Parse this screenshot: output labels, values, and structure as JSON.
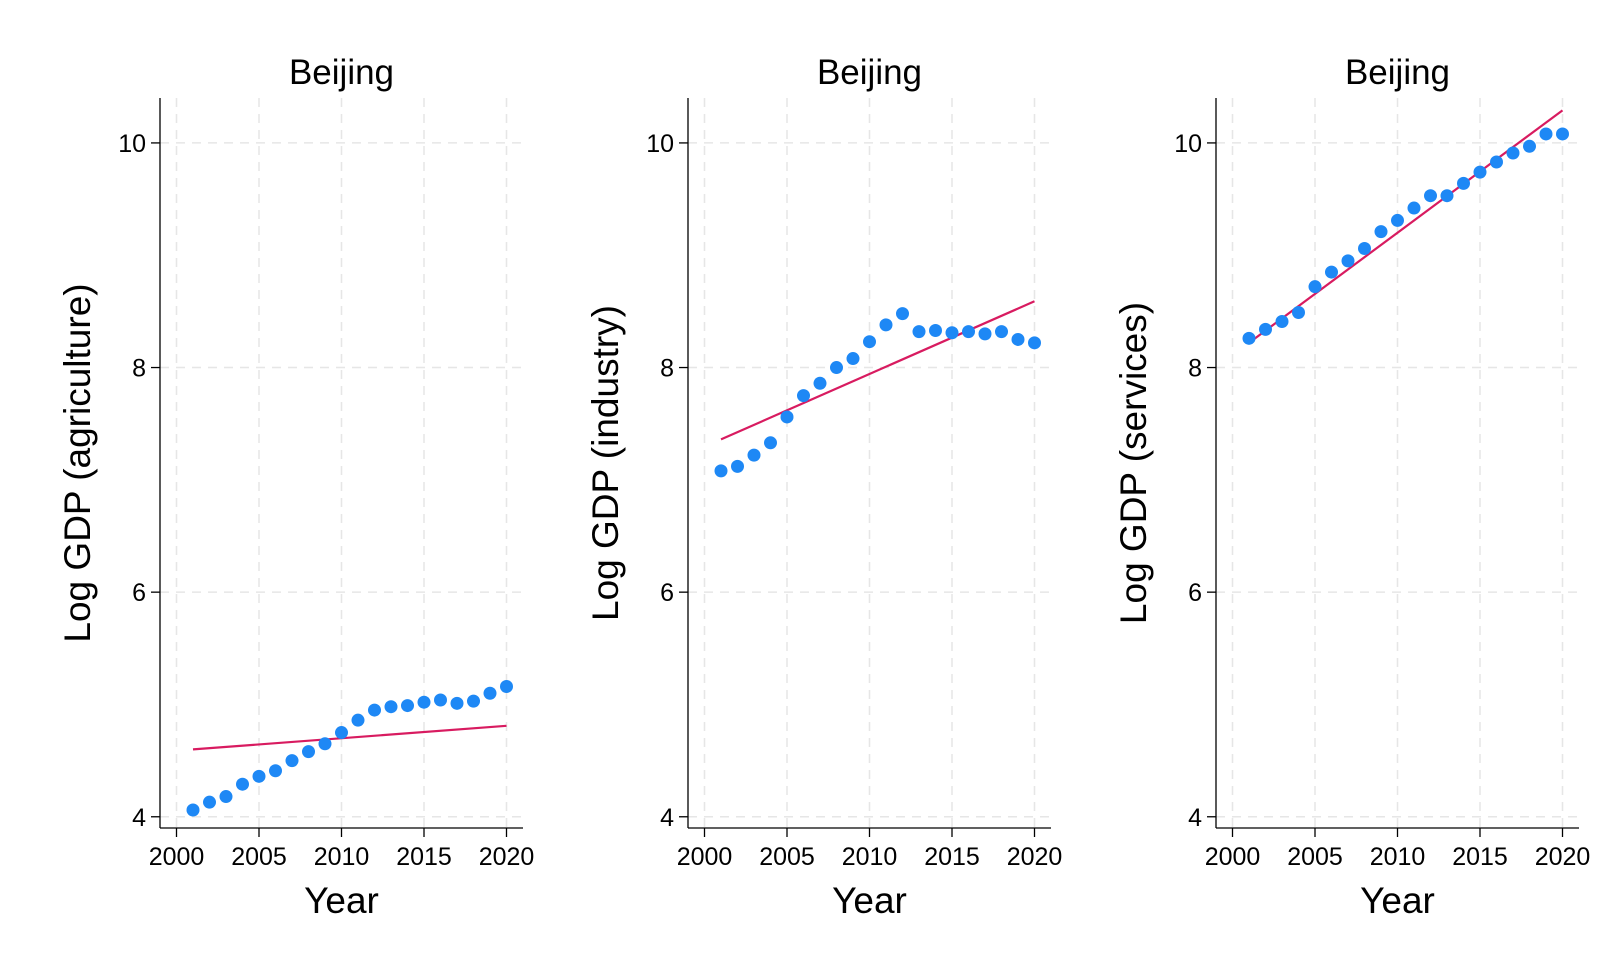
{
  "chart_data": [
    {
      "type": "scatter",
      "title": "Beijing",
      "xlabel": "Year",
      "ylabel": "Log GDP (agriculture)",
      "xlim": [
        1999.0,
        2021.0
      ],
      "ylim": [
        3.9,
        10.4
      ],
      "xticks": [
        2000,
        2005,
        2010,
        2015,
        2020
      ],
      "yticks": [
        4,
        6,
        8,
        10
      ],
      "grid": true,
      "legend": "none",
      "colors": {
        "points": "#1e88f5",
        "fit": "#d81b60",
        "grid": "#e6e6e6"
      },
      "series": [
        {
          "type": "scatter",
          "x": [
            2001,
            2002,
            2003,
            2004,
            2005,
            2006,
            2007,
            2008,
            2009,
            2010,
            2011,
            2012,
            2013,
            2014,
            2015,
            2016,
            2017,
            2018,
            2019,
            2020
          ],
          "y": [
            4.06,
            4.13,
            4.18,
            4.29,
            4.36,
            4.41,
            4.5,
            4.58,
            4.65,
            4.75,
            4.86,
            4.95,
            4.98,
            4.99,
            5.02,
            5.04,
            5.01,
            5.03,
            5.1,
            5.16
          ]
        },
        {
          "type": "line",
          "x": [
            2001,
            2020
          ],
          "y": [
            4.6,
            4.81
          ]
        }
      ]
    },
    {
      "type": "scatter",
      "title": "Beijing",
      "xlabel": "Year",
      "ylabel": "Log GDP (industry)",
      "xlim": [
        1999.0,
        2021.0
      ],
      "ylim": [
        3.9,
        10.4
      ],
      "xticks": [
        2000,
        2005,
        2010,
        2015,
        2020
      ],
      "yticks": [
        4,
        6,
        8,
        10
      ],
      "grid": true,
      "legend": "none",
      "colors": {
        "points": "#1e88f5",
        "fit": "#d81b60",
        "grid": "#e6e6e6"
      },
      "series": [
        {
          "type": "scatter",
          "x": [
            2001,
            2002,
            2003,
            2004,
            2005,
            2006,
            2007,
            2008,
            2009,
            2010,
            2011,
            2012,
            2013,
            2014,
            2015,
            2016,
            2017,
            2018,
            2019,
            2020
          ],
          "y": [
            7.08,
            7.12,
            7.22,
            7.33,
            7.56,
            7.75,
            7.86,
            8.0,
            8.08,
            8.23,
            8.38,
            8.48,
            8.32,
            8.33,
            8.31,
            8.32,
            8.3,
            8.32,
            8.25,
            8.22
          ]
        },
        {
          "type": "line",
          "x": [
            2001,
            2020
          ],
          "y": [
            7.36,
            8.59
          ]
        }
      ]
    },
    {
      "type": "scatter",
      "title": "Beijing",
      "xlabel": "Year",
      "ylabel": "Log GDP (services)",
      "xlim": [
        1999.0,
        2021.0
      ],
      "ylim": [
        3.9,
        10.4
      ],
      "xticks": [
        2000,
        2005,
        2010,
        2015,
        2020
      ],
      "yticks": [
        4,
        6,
        8,
        10
      ],
      "grid": true,
      "legend": "none",
      "colors": {
        "points": "#1e88f5",
        "fit": "#d81b60",
        "grid": "#e6e6e6"
      },
      "series": [
        {
          "type": "scatter",
          "x": [
            2001,
            2002,
            2003,
            2004,
            2005,
            2006,
            2007,
            2008,
            2009,
            2010,
            2011,
            2012,
            2013,
            2014,
            2015,
            2016,
            2017,
            2018,
            2019,
            2020
          ],
          "y": [
            8.26,
            8.34,
            8.41,
            8.49,
            8.72,
            8.85,
            8.95,
            9.06,
            9.21,
            9.31,
            9.42,
            9.53,
            9.53,
            9.64,
            9.74,
            9.83,
            9.91,
            9.97,
            10.08,
            10.08
          ]
        },
        {
          "type": "line",
          "x": [
            2001,
            2020
          ],
          "y": [
            8.22,
            10.29
          ]
        }
      ]
    }
  ]
}
